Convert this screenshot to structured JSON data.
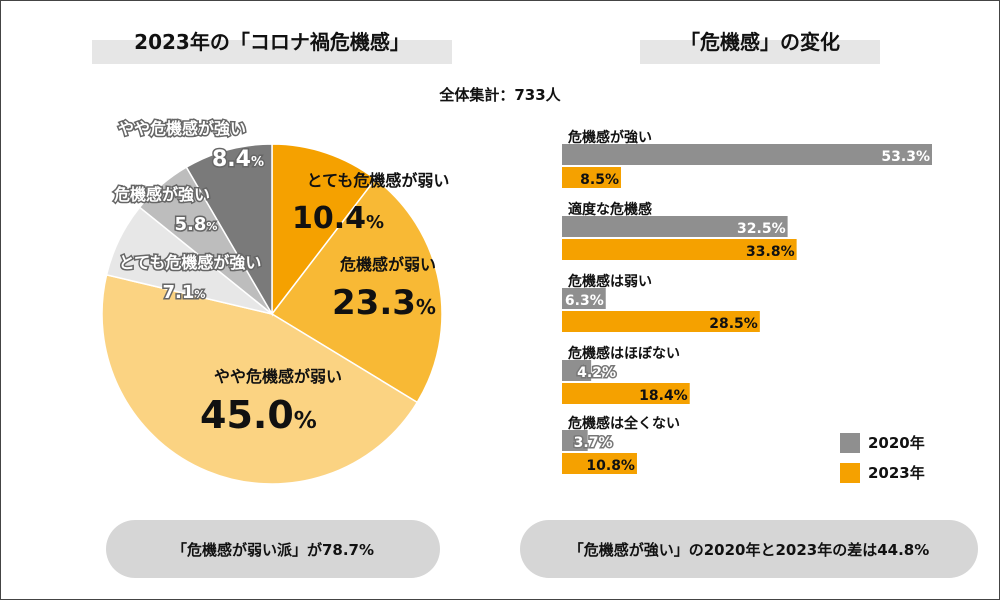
{
  "colors": {
    "very_weak": "#f5a100",
    "weak": "#f8b935",
    "somewhat_weak": "#fbd382",
    "very_strong": "#e7e7e7",
    "strong": "#bdbdbd",
    "somewhat_strong": "#7a7a7a",
    "bar_2020": "#8f8f8f",
    "bar_2023": "#f5a100"
  },
  "left_panel": {
    "title": "2023年の「コロナ禍危機感」",
    "pill_text": "「危機感が弱い派」が78.7%"
  },
  "right_panel": {
    "title": "「危機感」の変化",
    "pill_text": "「危機感が強い」の2020年と2023年の差は44.8%"
  },
  "total_label": "全体集計：733人",
  "chart_data": [
    {
      "type": "pie",
      "title": "2023年の「コロナ禍危機感」",
      "slices": [
        {
          "label": "とても危機感が弱い",
          "value": 10.4,
          "display": "10.4",
          "unit": "%"
        },
        {
          "label": "危機感が弱い",
          "value": 23.3,
          "display": "23.3",
          "unit": "%"
        },
        {
          "label": "やや危機感が弱い",
          "value": 45.0,
          "display": "45.0",
          "unit": "%"
        },
        {
          "label": "とても危機感が強い",
          "value": 7.1,
          "display": "7.1",
          "unit": "%"
        },
        {
          "label": "危機感が強い",
          "value": 5.8,
          "display": "5.8",
          "unit": "%"
        },
        {
          "label": "やや危機感が強い",
          "value": 8.4,
          "display": "8.4",
          "unit": "%"
        }
      ]
    },
    {
      "type": "bar",
      "orientation": "horizontal",
      "title": "「危機感」の変化",
      "categories": [
        "危機感が強い",
        "適度な危機感",
        "危機感は弱い",
        "危機感はほぼない",
        "危機感は全くない"
      ],
      "series": [
        {
          "name": "2020年",
          "values": [
            53.3,
            32.5,
            6.3,
            4.2,
            3.7
          ],
          "labels": [
            "53.3%",
            "32.5%",
            "6.3%",
            "4.2%",
            "3.7%"
          ]
        },
        {
          "name": "2023年",
          "values": [
            8.5,
            33.8,
            28.5,
            18.4,
            10.8
          ],
          "labels": [
            "8.5%",
            "33.8%",
            "28.5%",
            "18.4%",
            "10.8%"
          ]
        }
      ],
      "legend_position": "bottom-right"
    }
  ]
}
